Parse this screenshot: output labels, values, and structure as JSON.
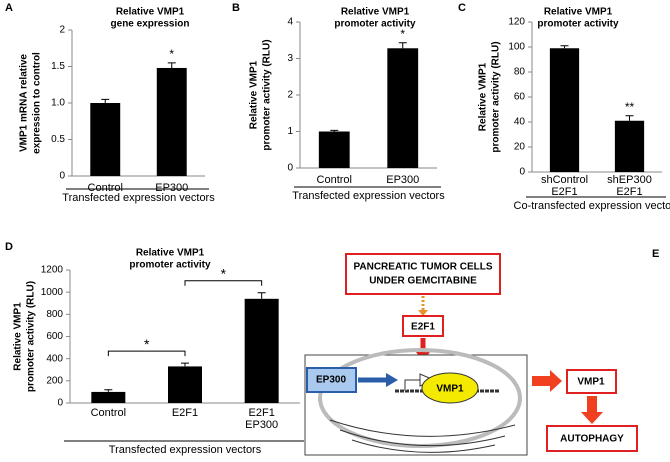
{
  "chart_data": [
    {
      "type": "bar",
      "label": "A",
      "title": [
        "Relative VMP1",
        "gene expression"
      ],
      "ylabel": [
        "VMP1 mRNA relative",
        "expression to control"
      ],
      "xlabel": "Transfected expression vectors",
      "categories": [
        [
          "Control"
        ],
        [
          "EP300"
        ]
      ],
      "values": [
        1.0,
        1.48
      ],
      "errors": [
        0.05,
        0.07
      ],
      "annotations": [
        null,
        "*"
      ],
      "color": "#000000",
      "ylim": [
        0,
        2
      ],
      "yticks": [
        0,
        0.5,
        {
          "value": 1,
          "label": "1.0"
        },
        1.5,
        2
      ]
    },
    {
      "type": "bar",
      "label": "B",
      "title": [
        "Relative VMP1",
        "promoter activity"
      ],
      "ylabel": [
        "Relative VMP1",
        "promoter activity (RLU)"
      ],
      "xlabel": "Transfected expression vectors",
      "categories": [
        [
          "Control"
        ],
        [
          "EP300"
        ]
      ],
      "values": [
        1.0,
        3.28
      ],
      "errors": [
        0.03,
        0.15
      ],
      "annotations": [
        null,
        "*"
      ],
      "color": "#000000",
      "ylim": [
        0,
        4
      ],
      "yticks": [
        0,
        1,
        2,
        3,
        4
      ]
    },
    {
      "type": "bar",
      "label": "C",
      "title": [
        "Relative VMP1",
        "promoter activity"
      ],
      "ylabel": [
        "Relative VMP1",
        "promoter activity (RLU)"
      ],
      "xlabel": "Co-transfected expression vectors",
      "categories": [
        [
          "shControl",
          "E2F1"
        ],
        [
          "shEP300",
          "E2F1"
        ]
      ],
      "values": [
        99,
        41
      ],
      "errors": [
        2,
        4
      ],
      "annotations": [
        null,
        "**"
      ],
      "color": "#000000",
      "ylim": [
        0,
        120
      ],
      "yticks": [
        0,
        20,
        40,
        60,
        80,
        100,
        120
      ]
    },
    {
      "type": "bar",
      "label": "D",
      "title": [
        "Relative VMP1",
        "promoter activity"
      ],
      "ylabel": [
        "Relative VMP1",
        "promoter activity (RLU)"
      ],
      "xlabel": "Transfected expression vectors",
      "categories": [
        [
          "Control"
        ],
        [
          "E2F1"
        ],
        [
          "E2F1",
          "EP300"
        ]
      ],
      "values": [
        100,
        330,
        940
      ],
      "errors": [
        20,
        30,
        55
      ],
      "brackets": [
        "*",
        "*"
      ],
      "color": "#000000",
      "ylim": [
        0,
        1200
      ],
      "yticks": [
        0,
        200,
        400,
        600,
        800,
        1000,
        1200
      ]
    }
  ],
  "diagram": {
    "label": "E",
    "stimulus": [
      "PANCREATIC TUMOR CELLS",
      "UNDER GEMCITABINE"
    ],
    "factor": "E2F1",
    "coactivator": "EP300",
    "gene": "VMP1",
    "product": "VMP1",
    "outcome": "AUTOPHAGY"
  }
}
